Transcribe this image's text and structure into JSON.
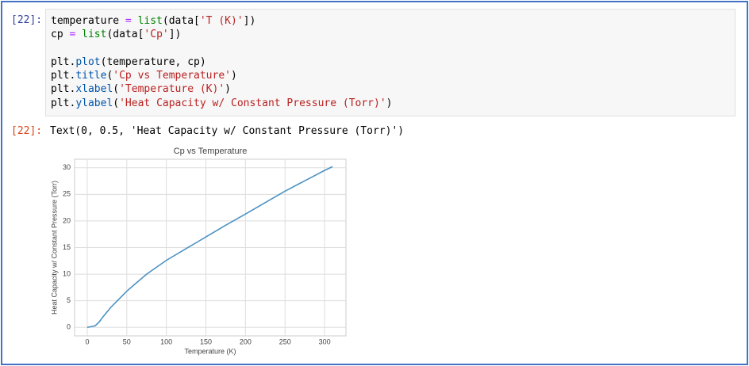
{
  "input_cell": {
    "prompt": "[22]:",
    "lines": [
      [
        {
          "text": "temperature ",
          "color": "#000000"
        },
        {
          "text": "=",
          "color": "#AA22FF"
        },
        {
          "text": " ",
          "color": "#000000"
        },
        {
          "text": "list",
          "color": "#008000"
        },
        {
          "text": "(data[",
          "color": "#000000"
        },
        {
          "text": "'T (K)'",
          "color": "#BA2121"
        },
        {
          "text": "])",
          "color": "#000000"
        }
      ],
      [
        {
          "text": "cp ",
          "color": "#000000"
        },
        {
          "text": "=",
          "color": "#AA22FF"
        },
        {
          "text": " ",
          "color": "#000000"
        },
        {
          "text": "list",
          "color": "#008000"
        },
        {
          "text": "(data[",
          "color": "#000000"
        },
        {
          "text": "'Cp'",
          "color": "#BA2121"
        },
        {
          "text": "])",
          "color": "#000000"
        }
      ],
      [],
      [
        {
          "text": "plt.",
          "color": "#000000"
        },
        {
          "text": "plot",
          "color": "#0055AA"
        },
        {
          "text": "(temperature, cp)",
          "color": "#000000"
        }
      ],
      [
        {
          "text": "plt.",
          "color": "#000000"
        },
        {
          "text": "title",
          "color": "#0055AA"
        },
        {
          "text": "(",
          "color": "#000000"
        },
        {
          "text": "'Cp vs Temperature'",
          "color": "#BA2121"
        },
        {
          "text": ")",
          "color": "#000000"
        }
      ],
      [
        {
          "text": "plt.",
          "color": "#000000"
        },
        {
          "text": "xlabel",
          "color": "#0055AA"
        },
        {
          "text": "(",
          "color": "#000000"
        },
        {
          "text": "'Temperature (K)'",
          "color": "#BA2121"
        },
        {
          "text": ")",
          "color": "#000000"
        }
      ],
      [
        {
          "text": "plt.",
          "color": "#000000"
        },
        {
          "text": "ylabel",
          "color": "#0055AA"
        },
        {
          "text": "(",
          "color": "#000000"
        },
        {
          "text": "'Heat Capacity w/ Constant Pressure (Torr)'",
          "color": "#BA2121"
        },
        {
          "text": ")",
          "color": "#000000"
        }
      ]
    ]
  },
  "output_cell": {
    "prompt": "[22]:",
    "text": "Text(0, 0.5, 'Heat Capacity w/ Constant Pressure (Torr)')"
  },
  "chart_data": {
    "type": "line",
    "title": "Cp vs Temperature",
    "xlabel": "Temperature (K)",
    "ylabel": "Heat Capacity w/ Constant Pressure (Torr)",
    "x": [
      0,
      10,
      15,
      20,
      30,
      40,
      50,
      60,
      75,
      100,
      125,
      150,
      175,
      200,
      250,
      300,
      310
    ],
    "series": [
      {
        "name": "Cp",
        "color": "#4c92c3",
        "values": [
          0,
          0.3,
          1,
          2,
          3.8,
          5.3,
          6.8,
          8.1,
          10,
          12.6,
          14.8,
          17,
          19.2,
          21.3,
          25.6,
          29.5,
          30.2
        ]
      }
    ],
    "xlim": [
      -16,
      327
    ],
    "ylim": [
      -1.6,
      31.6
    ],
    "xticks": [
      0,
      50,
      100,
      150,
      200,
      250,
      300
    ],
    "yticks": [
      0,
      5,
      10,
      15,
      20,
      25,
      30
    ],
    "grid": true
  }
}
